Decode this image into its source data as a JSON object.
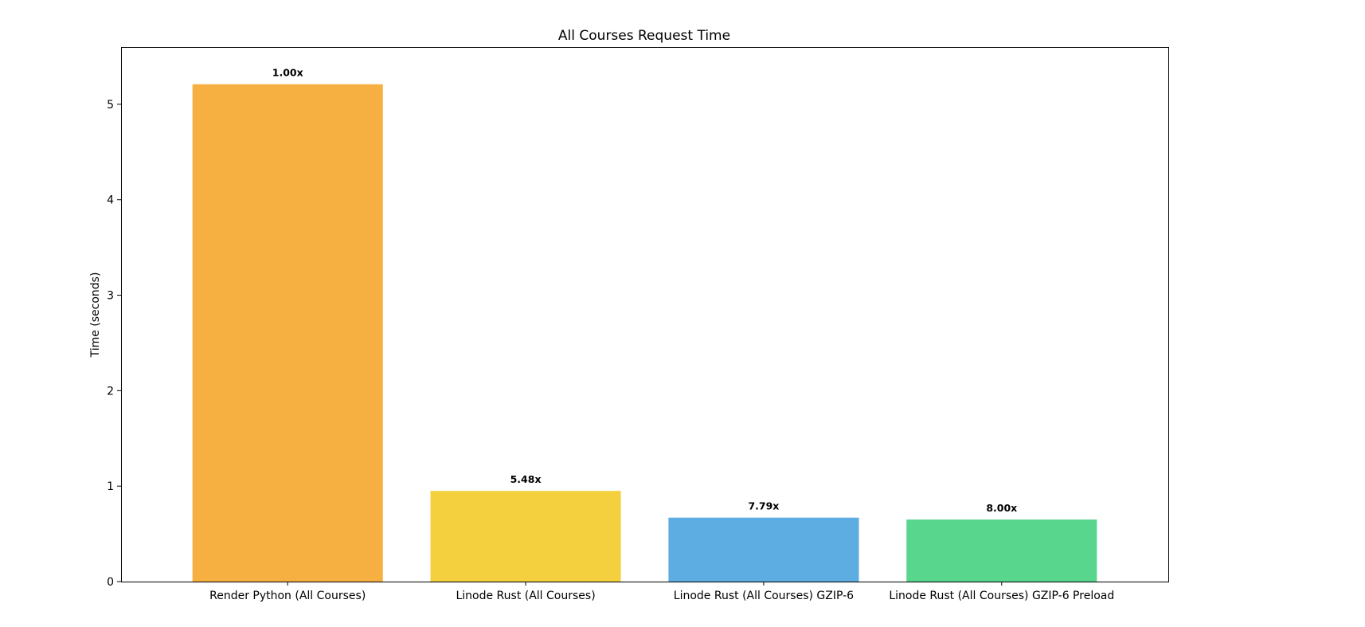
{
  "chart_data": {
    "type": "bar",
    "title": "All Courses Request Time",
    "xlabel": "",
    "ylabel": "Time (seconds)",
    "ylim": [
      0,
      5.6
    ],
    "yticks": [
      0,
      1,
      2,
      3,
      4,
      5
    ],
    "grid": false,
    "categories": [
      "Render Python (All Courses)",
      "Linode Rust (All Courses)",
      "Linode Rust (All Courses) GZIP-6",
      "Linode Rust (All Courses) GZIP-6 Preload"
    ],
    "values": [
      5.21,
      0.95,
      0.67,
      0.65
    ],
    "bar_labels": [
      "1.00x",
      "5.48x",
      "7.79x",
      "8.00x"
    ],
    "colors": [
      "#F5B041",
      "#F4D03F",
      "#5DADE2",
      "#58D68D"
    ]
  }
}
